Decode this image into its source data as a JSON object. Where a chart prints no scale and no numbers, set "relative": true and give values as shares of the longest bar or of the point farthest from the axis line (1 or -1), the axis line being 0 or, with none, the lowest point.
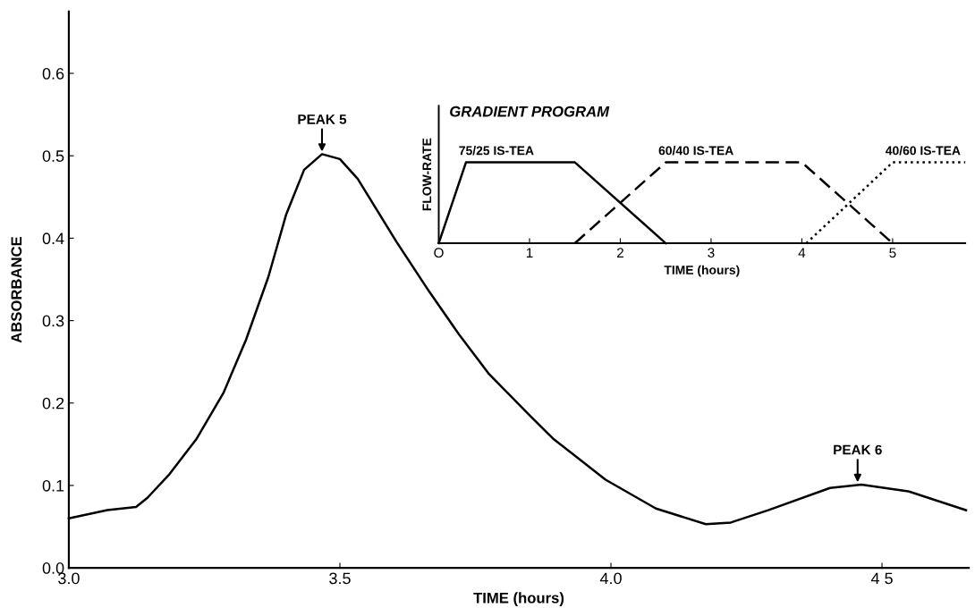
{
  "chart_data": [
    {
      "type": "line",
      "xlabel": "TIME (hours)",
      "ylabel": "ABSORBANCE",
      "xlim": [
        3.0,
        4.66
      ],
      "ylim": [
        0,
        0.675
      ],
      "xticks": [
        {
          "value": 3.0,
          "label": "3.0"
        },
        {
          "value": 3.5,
          "label": "3.5"
        },
        {
          "value": 4.0,
          "label": "4.0"
        },
        {
          "value": 4.5,
          "label": "4 5"
        }
      ],
      "yticks": [
        {
          "value": 0,
          "label": "0.0"
        },
        0.1,
        0.2,
        0.3,
        0.4,
        0.5,
        0.6
      ],
      "grid": false,
      "line_style": "solid",
      "marker": "none",
      "series": [
        {
          "color": "#000000",
          "x": [
            3.0,
            3.071,
            3.124,
            3.145,
            3.186,
            3.236,
            3.285,
            3.327,
            3.368,
            3.401,
            3.434,
            3.467,
            3.5,
            3.533,
            3.604,
            3.665,
            3.72,
            3.774,
            3.853,
            3.893,
            3.99,
            4.083,
            4.175,
            4.221,
            4.29,
            4.404,
            4.462,
            4.548,
            4.655
          ],
          "values": [
            0.06,
            0.07,
            0.074,
            0.085,
            0.114,
            0.157,
            0.212,
            0.277,
            0.353,
            0.429,
            0.483,
            0.502,
            0.496,
            0.472,
            0.396,
            0.335,
            0.283,
            0.236,
            0.183,
            0.157,
            0.107,
            0.072,
            0.053,
            0.055,
            0.07,
            0.097,
            0.101,
            0.093,
            0.07
          ]
        }
      ],
      "annotations": [
        {
          "text": "PEAK 5",
          "x": 3.467,
          "y": 0.502
        },
        {
          "text": "PEAK 6",
          "x": 4.455,
          "y": 0.101
        }
      ]
    },
    {
      "type": "line",
      "title": "GRADIENT PROGRAM",
      "xlabel": "TIME (hours)",
      "ylabel": "FLOW-RATE",
      "relative": true,
      "xlim": [
        0,
        5.8
      ],
      "xticks": [
        {
          "value": 0,
          "label": "O"
        },
        1,
        2,
        3,
        4,
        5
      ],
      "tick_labels": "x",
      "grid": false,
      "marker": "none",
      "series": [
        {
          "name": "75/25 IS-TEA",
          "color": "#000000",
          "line_style": "solid",
          "x": [
            0,
            0.3,
            1.5,
            2.5
          ],
          "values": [
            0,
            1,
            1,
            0
          ]
        },
        {
          "name": "60/40 IS-TEA",
          "color": "#000000",
          "line_style": "dashed",
          "x": [
            1.5,
            2.5,
            4.0,
            5.0
          ],
          "values": [
            0,
            1,
            1,
            0
          ]
        },
        {
          "name": "40/60 IS-TEA",
          "color": "#000000",
          "line_style": "dotted",
          "x": [
            4.05,
            5.0,
            5.8
          ],
          "values": [
            0,
            1,
            1
          ]
        }
      ]
    }
  ]
}
